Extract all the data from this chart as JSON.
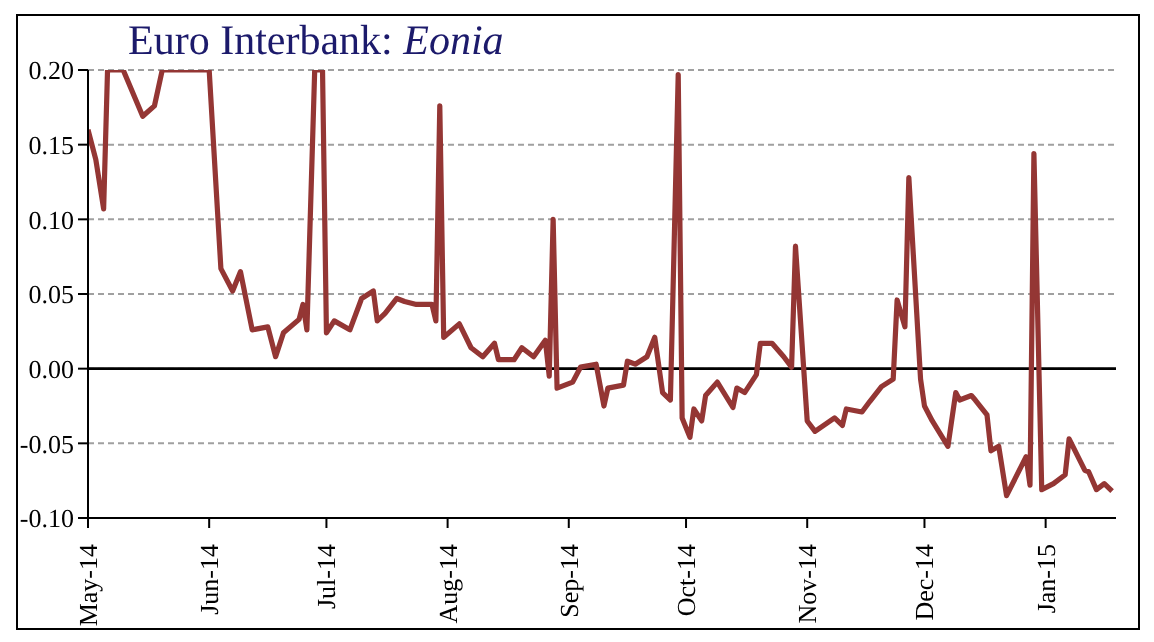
{
  "chart_data": {
    "type": "line",
    "title": "Euro Interbank: Eonia",
    "x": [
      "2014-05-01",
      "2014-05-03",
      "2014-05-05",
      "2014-05-06",
      "2014-05-10",
      "2014-05-15",
      "2014-05-18",
      "2014-05-20",
      "2014-06-01",
      "2014-06-04",
      "2014-06-07",
      "2014-06-09",
      "2014-06-12",
      "2014-06-16",
      "2014-06-18",
      "2014-06-20",
      "2014-06-24",
      "2014-06-25",
      "2014-06-26",
      "2014-06-28",
      "2014-06-30",
      "2014-07-01",
      "2014-07-03",
      "2014-07-07",
      "2014-07-10",
      "2014-07-13",
      "2014-07-14",
      "2014-07-16",
      "2014-07-19",
      "2014-07-21",
      "2014-07-24",
      "2014-07-28",
      "2014-07-29",
      "2014-07-30",
      "2014-07-31",
      "2014-08-04",
      "2014-08-07",
      "2014-08-10",
      "2014-08-13",
      "2014-08-14",
      "2014-08-18",
      "2014-08-20",
      "2014-08-23",
      "2014-08-26",
      "2014-08-27",
      "2014-08-28",
      "2014-08-29",
      "2014-09-02",
      "2014-09-04",
      "2014-09-08",
      "2014-09-10",
      "2014-09-11",
      "2014-09-15",
      "2014-09-16",
      "2014-09-18",
      "2014-09-21",
      "2014-09-23",
      "2014-09-25",
      "2014-09-27",
      "2014-09-29",
      "2014-09-30",
      "2014-10-02",
      "2014-10-03",
      "2014-10-05",
      "2014-10-06",
      "2014-10-09",
      "2014-10-13",
      "2014-10-14",
      "2014-10-16",
      "2014-10-19",
      "2014-10-20",
      "2014-10-23",
      "2014-10-26",
      "2014-10-28",
      "2014-10-29",
      "2014-11-01",
      "2014-11-03",
      "2014-11-08",
      "2014-11-10",
      "2014-11-11",
      "2014-11-15",
      "2014-11-17",
      "2014-11-20",
      "2014-11-23",
      "2014-11-24",
      "2014-11-26",
      "2014-11-27",
      "2014-11-30",
      "2014-12-01",
      "2014-12-03",
      "2014-12-07",
      "2014-12-09",
      "2014-12-10",
      "2014-12-13",
      "2014-12-14",
      "2014-12-17",
      "2014-12-18",
      "2014-12-20",
      "2014-12-22",
      "2014-12-27",
      "2014-12-28",
      "2014-12-29",
      "2014-12-31",
      "2015-01-03",
      "2015-01-06",
      "2015-01-07",
      "2015-01-11",
      "2015-01-12",
      "2015-01-14",
      "2015-01-16",
      "2015-01-18"
    ],
    "series": [
      {
        "color": "#943634",
        "values": [
          0.16,
          0.14,
          0.107,
          0.2,
          0.2,
          0.169,
          0.176,
          0.2,
          0.2,
          0.067,
          0.052,
          0.065,
          0.026,
          0.028,
          0.008,
          0.024,
          0.033,
          0.043,
          0.026,
          0.2,
          0.2,
          0.024,
          0.032,
          0.026,
          0.047,
          0.052,
          0.032,
          0.037,
          0.047,
          0.045,
          0.043,
          0.043,
          0.032,
          0.176,
          0.021,
          0.03,
          0.014,
          0.008,
          0.017,
          0.006,
          0.006,
          0.014,
          0.008,
          0.019,
          -0.005,
          0.1,
          -0.013,
          -0.009,
          0.001,
          0.003,
          -0.025,
          -0.013,
          -0.011,
          0.005,
          0.003,
          0.008,
          0.021,
          -0.016,
          -0.021,
          0.197,
          -0.033,
          -0.046,
          -0.027,
          -0.035,
          -0.018,
          -0.009,
          -0.026,
          -0.013,
          -0.016,
          -0.004,
          0.017,
          0.017,
          0.008,
          0.001,
          0.082,
          -0.035,
          -0.042,
          -0.033,
          -0.038,
          -0.027,
          -0.029,
          -0.022,
          -0.012,
          -0.007,
          0.046,
          0.028,
          0.128,
          -0.007,
          -0.025,
          -0.035,
          -0.052,
          -0.016,
          -0.021,
          -0.018,
          -0.021,
          -0.031,
          -0.055,
          -0.052,
          -0.085,
          -0.059,
          -0.078,
          0.144,
          -0.081,
          -0.077,
          -0.071,
          -0.047,
          -0.068,
          -0.069,
          -0.081,
          -0.077,
          -0.082
        ]
      }
    ],
    "xlim": [
      "2014-05-01",
      "2015-01-19"
    ],
    "xticks": [
      {
        "value": "2014-05-01",
        "label": "May-14"
      },
      {
        "value": "2014-06-01",
        "label": "Jun-14"
      },
      {
        "value": "2014-07-01",
        "label": "Jul-14"
      },
      {
        "value": "2014-08-01",
        "label": "Aug-14"
      },
      {
        "value": "2014-09-01",
        "label": "Sep-14"
      },
      {
        "value": "2014-10-01",
        "label": "Oct-14"
      },
      {
        "value": "2014-11-01",
        "label": "Nov-14"
      },
      {
        "value": "2014-12-01",
        "label": "Dec-14"
      },
      {
        "value": "2015-01-01",
        "label": "Jan-15"
      }
    ],
    "ylim": [
      -0.1,
      0.2
    ],
    "yticks": [
      {
        "value": -0.1,
        "label": "-0.10"
      },
      {
        "value": -0.05,
        "label": "-0.05"
      },
      {
        "value": 0,
        "label": "0.00"
      },
      {
        "value": 0.05,
        "label": "0.05"
      },
      {
        "value": 0.1,
        "label": "0.10"
      },
      {
        "value": 0.15,
        "label": "0.15"
      },
      {
        "value": 0.2,
        "label": "0.20"
      }
    ],
    "ref_lines": [
      {
        "axis": "y",
        "value": 0,
        "color": "#000000"
      }
    ],
    "grid": "y",
    "marker": "none",
    "line_style": "solid"
  }
}
